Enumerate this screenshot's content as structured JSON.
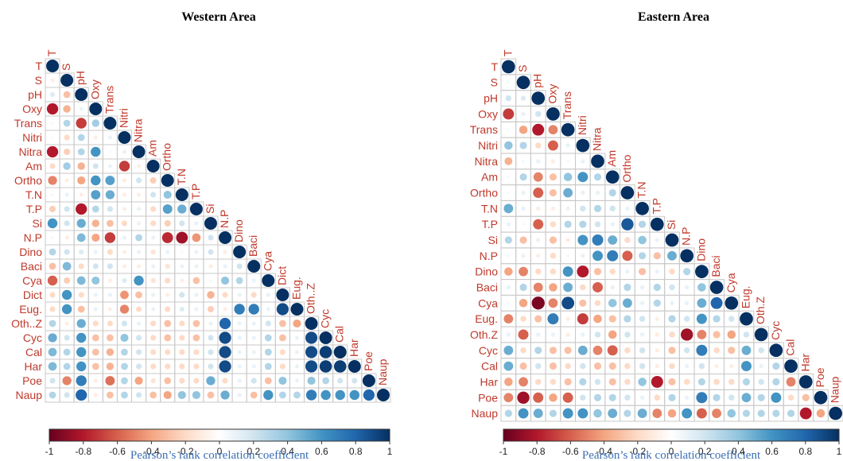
{
  "chart_data": [
    {
      "type": "heatmap",
      "title": "Western Area",
      "variables": [
        "T",
        "S",
        "pH",
        "Oxy",
        "Trans",
        "Nitri",
        "Nitra",
        "Am",
        "Ortho",
        "T.N",
        "T.P",
        "Si",
        "N.P",
        "Dino",
        "Baci",
        "Cya",
        "Dict",
        "Eug.",
        "Oth..Z",
        "Cyc",
        "Cal",
        "Har",
        "Poe",
        "Naup"
      ],
      "lower_triangle_r": [
        [
          1
        ],
        [
          -0.1,
          1
        ],
        [
          0.15,
          -0.3,
          1
        ],
        [
          -0.8,
          -0.35,
          0.1,
          1
        ],
        [
          0.05,
          0.3,
          -0.7,
          0.35,
          1
        ],
        [
          0.05,
          -0.2,
          0.3,
          -0.1,
          0.1,
          1
        ],
        [
          -0.8,
          -0.25,
          0.3,
          0.6,
          0.05,
          0.1,
          1
        ],
        [
          -0.2,
          0.35,
          -0.35,
          0.2,
          0.1,
          -0.7,
          -0.1,
          1
        ],
        [
          -0.5,
          -0.1,
          -0.4,
          0.6,
          0.55,
          -0.1,
          0.2,
          -0.25,
          1
        ],
        [
          0.05,
          0.1,
          -0.1,
          0.55,
          0.5,
          -0.1,
          -0.1,
          0.2,
          0.4,
          1
        ],
        [
          -0.25,
          0.2,
          -0.8,
          0.3,
          0.2,
          -0.1,
          0.1,
          -0.2,
          0.55,
          0.5,
          1
        ],
        [
          0.6,
          0.2,
          0.5,
          -0.35,
          -0.3,
          -0.2,
          0.1,
          -0.2,
          -0.25,
          0.2,
          0.1,
          1
        ],
        [
          0.05,
          -0.1,
          0.45,
          -0.4,
          -0.7,
          0.1,
          0.3,
          0.1,
          -0.75,
          -0.85,
          -0.45,
          0.2,
          1
        ],
        [
          0.3,
          0.2,
          0.15,
          0.1,
          -0.2,
          -0.1,
          0.1,
          -0.15,
          0.1,
          0.05,
          0.1,
          0.2,
          -0.1,
          1
        ],
        [
          -0.3,
          0.45,
          -0.2,
          0.2,
          0.2,
          -0.1,
          -0.1,
          0.1,
          -0.15,
          0.1,
          0.1,
          -0.1,
          0.1,
          0.2,
          1
        ],
        [
          -0.6,
          -0.25,
          0.45,
          0.4,
          -0.1,
          0.15,
          0.6,
          -0.15,
          -0.2,
          -0.1,
          -0.3,
          0.05,
          0.4,
          0.3,
          0.1,
          1
        ],
        [
          -0.2,
          0.6,
          -0.2,
          0.1,
          0.1,
          -0.45,
          -0.3,
          0.1,
          -0.1,
          0.2,
          0.1,
          -0.35,
          -0.2,
          0.1,
          -0.2,
          0.1,
          1
        ],
        [
          -0.2,
          0.6,
          -0.3,
          0.1,
          -0.1,
          -0.5,
          -0.2,
          0.1,
          -0.2,
          0.15,
          0.1,
          -0.25,
          -0.1,
          0.7,
          0.7,
          0.1,
          0.9,
          1
        ],
        [
          0.3,
          -0.1,
          0.5,
          -0.2,
          -0.2,
          0.2,
          0.1,
          -0.2,
          -0.3,
          -0.2,
          -0.3,
          0.1,
          0.8,
          0.1,
          0.1,
          0.2,
          -0.3,
          -0.4,
          1
        ],
        [
          0.5,
          0.2,
          0.6,
          -0.3,
          -0.3,
          0.4,
          0.2,
          -0.2,
          -0.3,
          -0.2,
          -0.3,
          0.2,
          0.9,
          0.1,
          0.1,
          0.3,
          -0.3,
          0.1,
          0.9,
          1
        ],
        [
          0.45,
          0.3,
          0.6,
          -0.3,
          -0.35,
          0.3,
          0.2,
          -0.2,
          -0.2,
          -0.2,
          -0.2,
          0.2,
          0.9,
          0.1,
          0.1,
          0.3,
          -0.2,
          0.1,
          0.9,
          0.95,
          1
        ],
        [
          0.45,
          0.3,
          0.6,
          -0.3,
          -0.35,
          0.3,
          0.2,
          -0.2,
          -0.2,
          -0.2,
          -0.2,
          0.2,
          0.9,
          0.1,
          0.1,
          0.3,
          -0.2,
          0.1,
          0.9,
          0.95,
          0.95,
          1
        ],
        [
          0.2,
          -0.5,
          0.7,
          -0.1,
          -0.55,
          0.3,
          -0.4,
          -0.15,
          -0.3,
          -0.2,
          -0.2,
          0.5,
          -0.2,
          0.1,
          0.2,
          -0.3,
          0.4,
          0.1,
          0.4,
          0.3,
          0.2,
          0.2,
          1
        ],
        [
          0.3,
          0.2,
          0.8,
          -0.1,
          -0.3,
          0.3,
          0.2,
          -0.3,
          -0.4,
          0.4,
          0.4,
          -0.3,
          0.5,
          0.1,
          -0.3,
          0.6,
          0.3,
          0.3,
          0.7,
          0.6,
          0.6,
          0.6,
          0.8,
          1
        ]
      ],
      "colorbar_ticks": [
        "-1",
        "-0.8",
        "-0.6",
        "-0.4",
        "-0.2",
        "0",
        "0.2",
        "0.4",
        "0.6",
        "0.8",
        "1"
      ],
      "colorbar_label": "Pearson’s rank correlation coefficient",
      "clim": [
        -1,
        1
      ],
      "colors": {
        "neg": "#67001f",
        "mid": "#ffffff",
        "pos": "#053061",
        "grid": "#c8c8c8",
        "label": "#c0392b"
      }
    },
    {
      "type": "heatmap",
      "title": "Eastern Area",
      "variables": [
        "T",
        "S",
        "pH",
        "Oxy",
        "Trans",
        "Nitri",
        "Nitra",
        "Am",
        "Ortho",
        "T.N",
        "T.P",
        "Si",
        "N.P",
        "Dino",
        "Baci",
        "Cya",
        "Eug.",
        "Oth.Z",
        "Cyc",
        "Cal",
        "Har",
        "Poe",
        "Naup"
      ],
      "lower_triangle_r": [
        [
          1
        ],
        [
          0.05,
          1
        ],
        [
          0.2,
          0.15,
          1
        ],
        [
          -0.7,
          0.1,
          0.2,
          1
        ],
        [
          0.05,
          -0.4,
          -0.8,
          -0.5,
          1
        ],
        [
          0.4,
          0.3,
          -0.2,
          -0.6,
          0.1,
          1
        ],
        [
          -0.35,
          0.05,
          0.1,
          -0.1,
          0.05,
          0.1,
          1
        ],
        [
          0.05,
          0.3,
          -0.5,
          -0.3,
          0.4,
          0.6,
          0.3,
          1
        ],
        [
          0.05,
          0.1,
          -0.6,
          -0.3,
          0.5,
          0.1,
          0.1,
          0.3,
          1
        ],
        [
          0.5,
          0.1,
          -0.1,
          -0.1,
          0.1,
          0.2,
          0.3,
          0.2,
          0.1,
          1
        ],
        [
          0.1,
          0.05,
          -0.6,
          -0.2,
          0.3,
          0.3,
          0.2,
          0.1,
          0.85,
          0.3,
          1
        ],
        [
          0.3,
          -0.3,
          0.1,
          -0.3,
          -0.1,
          0.6,
          0.7,
          0.5,
          -0.2,
          0.4,
          0.1,
          1
        ],
        [
          0.05,
          0.1,
          -0.1,
          -0.2,
          0.05,
          0.1,
          0.6,
          0.7,
          -0.6,
          0.3,
          -0.3,
          0.5,
          1
        ],
        [
          -0.4,
          -0.5,
          -0.2,
          -0.2,
          0.6,
          -0.8,
          -0.3,
          -0.2,
          0.1,
          -0.3,
          0.1,
          -0.2,
          0.3,
          1
        ],
        [
          0.1,
          0.3,
          -0.5,
          -0.4,
          0.5,
          -0.2,
          -0.6,
          0.1,
          0.3,
          0.1,
          0.3,
          0.2,
          0.1,
          0.4,
          1
        ],
        [
          0.05,
          -0.4,
          -0.95,
          -0.5,
          0.9,
          -0.3,
          -0.2,
          0.4,
          0.5,
          0.1,
          0.3,
          0.1,
          0.1,
          0.5,
          0.8,
          1
        ],
        [
          -0.5,
          -0.2,
          -0.3,
          0.7,
          -0.1,
          -0.7,
          -0.4,
          -0.3,
          0.3,
          0.2,
          -0.1,
          0.3,
          0.2,
          0.6,
          0.3,
          0.2,
          1
        ],
        [
          0.1,
          -0.6,
          0.1,
          0.1,
          -0.1,
          0.1,
          0.2,
          -0.4,
          0.2,
          0.1,
          -0.1,
          -0.2,
          -0.85,
          -0.5,
          -0.3,
          -0.4,
          0.2,
          1
        ],
        [
          0.5,
          -0.2,
          0.3,
          -0.3,
          -0.3,
          0.5,
          -0.5,
          -0.6,
          -0.2,
          0.2,
          -0.1,
          -0.3,
          0.2,
          0.7,
          -0.2,
          -0.3,
          0.5,
          0.2,
          1
        ],
        [
          0.5,
          -0.3,
          0.2,
          -0.3,
          -0.2,
          0.2,
          -0.3,
          -0.3,
          -0.2,
          0.2,
          -0.1,
          -0.2,
          0.1,
          0.2,
          -0.1,
          -0.1,
          0.6,
          0.1,
          0.3,
          1
        ],
        [
          -0.4,
          -0.5,
          -0.2,
          -0.2,
          -0.3,
          0.3,
          0.2,
          -0.3,
          -0.2,
          0.4,
          -0.8,
          -0.3,
          -0.2,
          0.3,
          -0.2,
          -0.2,
          0.3,
          0.2,
          0.3,
          -0.5,
          1
        ],
        [
          -0.5,
          -0.85,
          -0.6,
          -0.4,
          -0.6,
          0.2,
          0.3,
          0.3,
          0.2,
          0.1,
          -0.2,
          0.3,
          0.1,
          0.7,
          0.3,
          0.2,
          0.5,
          0.3,
          0.6,
          -0.2,
          -0.3,
          1
        ],
        [
          0.3,
          0.6,
          0.5,
          0.3,
          0.6,
          0.6,
          0.4,
          0.5,
          0.3,
          0.5,
          -0.5,
          -0.4,
          0.6,
          -0.6,
          -0.5,
          0.4,
          0.3,
          0.3,
          0.3,
          0.3,
          -0.8,
          -0.4,
          1
        ]
      ],
      "colorbar_ticks": [
        "-1",
        "-0.8",
        "-0.6",
        "-0.4",
        "-0.2",
        "0",
        "0.2",
        "0.4",
        "0.6",
        "0.8",
        "1"
      ],
      "colorbar_label": "Pearson’s rank correlation coefficient",
      "clim": [
        -1,
        1
      ],
      "colors": {
        "neg": "#67001f",
        "mid": "#ffffff",
        "pos": "#053061",
        "grid": "#c8c8c8",
        "label": "#c0392b"
      }
    }
  ]
}
